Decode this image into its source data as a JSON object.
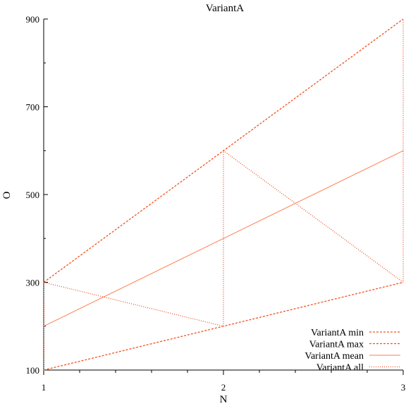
{
  "chart_data": {
    "type": "line",
    "title": "VariantA",
    "xlabel": "N",
    "ylabel": "O",
    "xlim": [
      1,
      3
    ],
    "ylim": [
      100,
      900
    ],
    "xticks": [
      "1",
      "2",
      "3"
    ],
    "yticks": [
      "100",
      "300",
      "500",
      "700",
      "900"
    ],
    "grid": false,
    "legend_position": "bottom-right",
    "series": [
      {
        "name": "VariantA min",
        "style": "dashed",
        "color": "#f4511e",
        "x": [
          1,
          2,
          3
        ],
        "y": [
          100,
          200,
          300
        ]
      },
      {
        "name": "VariantA max",
        "style": "dashed",
        "color": "#f4511e",
        "x": [
          1,
          2,
          3
        ],
        "y": [
          300,
          600,
          900
        ]
      },
      {
        "name": "VariantA mean",
        "style": "solid",
        "color": "#ff7f50",
        "x": [
          1,
          2,
          3
        ],
        "y": [
          200,
          400,
          600
        ]
      },
      {
        "name": "VariantA all",
        "style": "dotted",
        "color": "#e8542f",
        "x": [
          1,
          1,
          2,
          2,
          3,
          3
        ],
        "y": [
          100,
          300,
          200,
          600,
          300,
          900
        ]
      }
    ]
  }
}
